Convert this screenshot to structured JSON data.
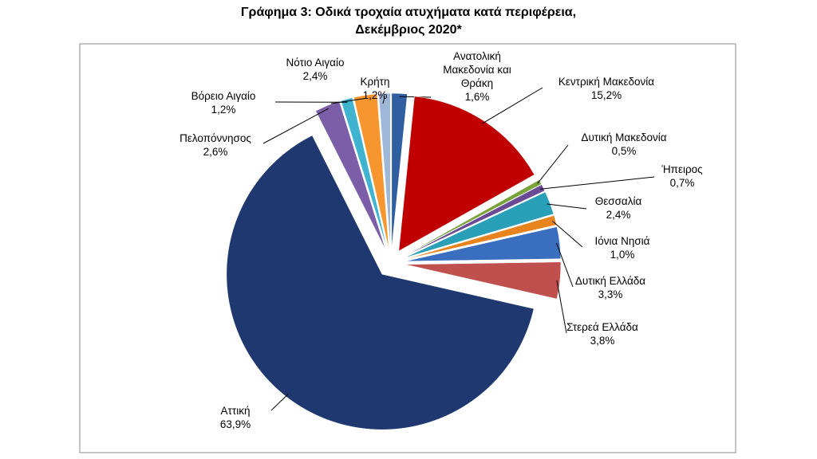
{
  "chart_data": {
    "type": "pie",
    "title": [
      "Γράφημα 3: Οδικά τροχαία ατυχήματα κατά περιφέρεια,",
      "Δεκέμβριος 2020*"
    ],
    "categories": [
      "Ανατολική Μακεδονία και Θράκη",
      "Κεντρική Μακεδονία",
      "Δυτική Μακεδονία",
      "Ήπειρος",
      "Θεσσαλία",
      "Ιόνια Νησιά",
      "Δυτική Ελλάδα",
      "Στερεά Ελλάδα",
      "Αττική",
      "Πελοπόννησος",
      "Βόρειο Αιγαίο",
      "Νότιο Αιγαίο",
      "Κρήτη"
    ],
    "values": [
      1.6,
      15.2,
      0.5,
      0.7,
      2.4,
      1.0,
      3.3,
      3.8,
      63.9,
      2.6,
      1.2,
      2.4,
      1.2
    ],
    "value_labels": [
      "1,6%",
      "15,2%",
      "0,5%",
      "0,7%",
      "2,4%",
      "1,0%",
      "3,3%",
      "3,8%",
      "63,9%",
      "2,6%",
      "1,2%",
      "2,4%",
      "1,2%"
    ],
    "colors": [
      "#2f5fa0",
      "#c00000",
      "#77a33a",
      "#6a4a94",
      "#2aa0b8",
      "#e8841e",
      "#3a6fc0",
      "#c0504d",
      "#1f3870",
      "#7b5ea7",
      "#3fb3cf",
      "#f7962f",
      "#9fb7d9"
    ]
  }
}
